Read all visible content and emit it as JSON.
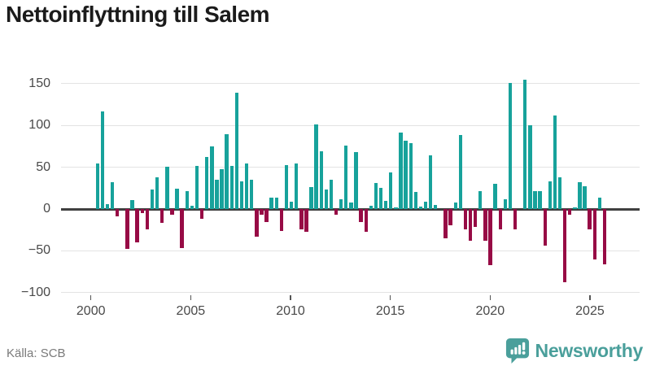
{
  "title": "Nettoinflyttning till Salem",
  "source": "Källa: SCB",
  "brand": {
    "name": "Newsworthy",
    "color": "#4a9f9b"
  },
  "colors": {
    "positive": "#17a29b",
    "negative": "#970b45",
    "grid": "#e3e3e3",
    "zero_line": "#404040",
    "title_text": "#1b1b1b",
    "axis_text": "#494949",
    "source_text": "#7a7a7a",
    "background": "#ffffff"
  },
  "chart_data": {
    "type": "bar",
    "title": "Nettoinflyttning till Salem",
    "frequency": "quarterly",
    "start_period": "2000-Q2",
    "xlabel": "",
    "ylabel": "",
    "ylim": [
      -100,
      160
    ],
    "grid": true,
    "y_ticks": [
      150,
      100,
      50,
      0,
      -50,
      -100
    ],
    "y_tick_labels": [
      "150",
      "100",
      "50",
      "0",
      "−50",
      "−100"
    ],
    "x_tick_years": [
      2000,
      2005,
      2010,
      2015,
      2020,
      2025
    ],
    "x_tick_labels": [
      "2000",
      "2005",
      "2010",
      "2015",
      "2020",
      "2025"
    ],
    "positive_color": "#17a29b",
    "negative_color": "#970b45",
    "series": [
      {
        "name": "Nettoinflyttning",
        "values": [
          55,
          117,
          6,
          32,
          -9,
          0,
          -48,
          11,
          -40,
          -5,
          -24,
          23,
          38,
          -17,
          51,
          -7,
          24,
          -47,
          21,
          4,
          52,
          -12,
          62,
          75,
          35,
          48,
          90,
          52,
          139,
          33,
          55,
          35,
          -33,
          -7,
          -16,
          14,
          14,
          -26,
          53,
          9,
          55,
          -24,
          -27,
          26,
          101,
          69,
          23,
          35,
          -7,
          12,
          76,
          8,
          68,
          -16,
          -27,
          4,
          31,
          25,
          10,
          44,
          2,
          92,
          82,
          79,
          20,
          3,
          9,
          64,
          5,
          0,
          -35,
          -19,
          8,
          89,
          -24,
          -38,
          -21,
          21,
          -38,
          -67,
          30,
          -24,
          12,
          151,
          -24,
          0,
          155,
          100,
          21,
          21,
          -44,
          33,
          112,
          38,
          -88,
          -7,
          2,
          32,
          27,
          -24,
          -60,
          14,
          -66
        ]
      }
    ]
  }
}
